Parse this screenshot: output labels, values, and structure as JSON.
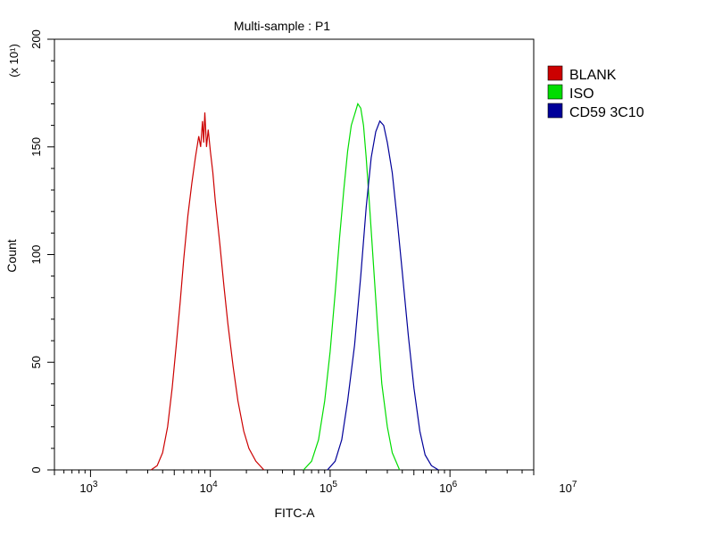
{
  "chart_data": {
    "type": "line",
    "title": "Multi-sample : P1",
    "xlabel": "FITC-A",
    "ylabel": "Count",
    "y_multiplier_label": "(x 10¹)",
    "x_scale": "log",
    "xlim": [
      500,
      5000000
    ],
    "ylim": [
      0,
      200
    ],
    "grid": false,
    "legend_position": "top-right",
    "x_ticks": [
      {
        "value": 1000,
        "base": "10",
        "exp": "3"
      },
      {
        "value": 10000,
        "base": "10",
        "exp": "4"
      },
      {
        "value": 100000,
        "base": "10",
        "exp": "5"
      },
      {
        "value": 1000000,
        "base": "10",
        "exp": "6"
      },
      {
        "value": 10000000,
        "base": "10",
        "exp": "7"
      }
    ],
    "y_ticks": [
      "0",
      "50",
      "100",
      "150",
      "200"
    ],
    "series": [
      {
        "name": "BLANK",
        "color": "#cc0000",
        "points": [
          [
            3200,
            0
          ],
          [
            3600,
            2
          ],
          [
            4000,
            8
          ],
          [
            4400,
            20
          ],
          [
            4800,
            38
          ],
          [
            5200,
            58
          ],
          [
            5600,
            78
          ],
          [
            6000,
            98
          ],
          [
            6500,
            118
          ],
          [
            7000,
            133
          ],
          [
            7500,
            145
          ],
          [
            8000,
            155
          ],
          [
            8300,
            150
          ],
          [
            8600,
            162
          ],
          [
            8800,
            152
          ],
          [
            9000,
            166
          ],
          [
            9300,
            150
          ],
          [
            9600,
            158
          ],
          [
            10000,
            148
          ],
          [
            10500,
            138
          ],
          [
            11000,
            125
          ],
          [
            12000,
            105
          ],
          [
            13000,
            85
          ],
          [
            14000,
            68
          ],
          [
            15500,
            48
          ],
          [
            17000,
            32
          ],
          [
            19000,
            18
          ],
          [
            21000,
            10
          ],
          [
            24000,
            4
          ],
          [
            28000,
            0
          ]
        ]
      },
      {
        "name": "ISO",
        "color": "#00dd00",
        "points": [
          [
            60000,
            0
          ],
          [
            70000,
            4
          ],
          [
            80000,
            14
          ],
          [
            90000,
            32
          ],
          [
            100000,
            55
          ],
          [
            110000,
            82
          ],
          [
            120000,
            108
          ],
          [
            130000,
            130
          ],
          [
            140000,
            148
          ],
          [
            150000,
            160
          ],
          [
            160000,
            165
          ],
          [
            170000,
            170
          ],
          [
            180000,
            168
          ],
          [
            190000,
            160
          ],
          [
            200000,
            145
          ],
          [
            215000,
            120
          ],
          [
            230000,
            95
          ],
          [
            250000,
            65
          ],
          [
            270000,
            40
          ],
          [
            300000,
            20
          ],
          [
            330000,
            8
          ],
          [
            380000,
            0
          ]
        ]
      },
      {
        "name": "CD59 3C10",
        "color": "#000099",
        "points": [
          [
            95000,
            0
          ],
          [
            110000,
            4
          ],
          [
            125000,
            14
          ],
          [
            140000,
            32
          ],
          [
            160000,
            58
          ],
          [
            180000,
            90
          ],
          [
            200000,
            122
          ],
          [
            220000,
            145
          ],
          [
            240000,
            157
          ],
          [
            260000,
            162
          ],
          [
            280000,
            160
          ],
          [
            300000,
            152
          ],
          [
            330000,
            138
          ],
          [
            360000,
            118
          ],
          [
            400000,
            92
          ],
          [
            450000,
            62
          ],
          [
            500000,
            38
          ],
          [
            560000,
            18
          ],
          [
            620000,
            7
          ],
          [
            700000,
            2
          ],
          [
            800000,
            0
          ]
        ]
      }
    ]
  }
}
